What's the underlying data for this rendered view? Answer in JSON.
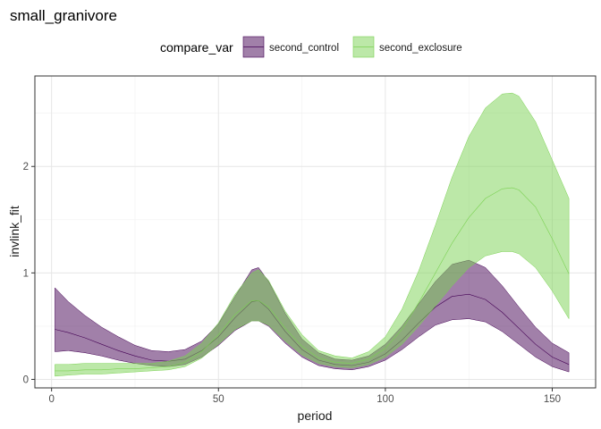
{
  "chart_data": {
    "type": "area",
    "title": "small_granivore",
    "xlabel": "period",
    "ylabel": "invlink_fit",
    "xlim": [
      -5,
      163
    ],
    "ylim": [
      -0.08,
      2.85
    ],
    "x_ticks": [
      0,
      50,
      100,
      150
    ],
    "y_ticks": [
      0,
      1,
      2
    ],
    "grid": true,
    "legend": {
      "title": "compare_var",
      "position": "top"
    },
    "series": [
      {
        "name": "second_control",
        "fill": "#440154",
        "line": "#440154",
        "x": [
          1,
          5,
          10,
          15,
          20,
          25,
          30,
          35,
          40,
          45,
          50,
          55,
          60,
          62,
          65,
          70,
          75,
          80,
          85,
          90,
          95,
          100,
          105,
          110,
          115,
          120,
          125,
          130,
          135,
          140,
          145,
          150,
          155
        ],
        "fit": [
          0.47,
          0.44,
          0.39,
          0.33,
          0.27,
          0.22,
          0.18,
          0.17,
          0.19,
          0.27,
          0.4,
          0.58,
          0.73,
          0.74,
          0.66,
          0.45,
          0.28,
          0.18,
          0.14,
          0.13,
          0.16,
          0.24,
          0.37,
          0.53,
          0.68,
          0.78,
          0.8,
          0.75,
          0.63,
          0.48,
          0.33,
          0.21,
          0.14
        ],
        "lower": [
          0.26,
          0.27,
          0.25,
          0.22,
          0.18,
          0.15,
          0.13,
          0.12,
          0.14,
          0.21,
          0.32,
          0.46,
          0.55,
          0.55,
          0.5,
          0.34,
          0.21,
          0.13,
          0.1,
          0.09,
          0.12,
          0.18,
          0.28,
          0.4,
          0.51,
          0.56,
          0.57,
          0.54,
          0.45,
          0.33,
          0.21,
          0.12,
          0.07
        ],
        "upper": [
          0.86,
          0.73,
          0.6,
          0.49,
          0.4,
          0.32,
          0.27,
          0.26,
          0.28,
          0.36,
          0.52,
          0.78,
          1.03,
          1.05,
          0.92,
          0.62,
          0.38,
          0.25,
          0.19,
          0.18,
          0.22,
          0.33,
          0.5,
          0.71,
          0.92,
          1.08,
          1.12,
          1.05,
          0.88,
          0.68,
          0.49,
          0.34,
          0.25
        ]
      },
      {
        "name": "second_exclosure",
        "fill": "#7AD151",
        "line": "#7AD151",
        "x": [
          1,
          5,
          10,
          15,
          20,
          25,
          30,
          35,
          40,
          45,
          50,
          55,
          60,
          62,
          65,
          70,
          75,
          80,
          85,
          90,
          95,
          100,
          105,
          110,
          115,
          120,
          125,
          130,
          135,
          138,
          140,
          145,
          150,
          155
        ],
        "fit": [
          0.08,
          0.08,
          0.09,
          0.09,
          0.1,
          0.1,
          0.11,
          0.12,
          0.16,
          0.26,
          0.42,
          0.61,
          0.74,
          0.74,
          0.68,
          0.48,
          0.31,
          0.2,
          0.16,
          0.15,
          0.19,
          0.29,
          0.47,
          0.72,
          1.0,
          1.28,
          1.52,
          1.7,
          1.79,
          1.8,
          1.78,
          1.62,
          1.32,
          0.99
        ],
        "lower": [
          0.03,
          0.04,
          0.05,
          0.05,
          0.06,
          0.07,
          0.08,
          0.09,
          0.12,
          0.2,
          0.33,
          0.47,
          0.55,
          0.55,
          0.51,
          0.36,
          0.23,
          0.15,
          0.12,
          0.11,
          0.14,
          0.21,
          0.33,
          0.5,
          0.69,
          0.88,
          1.05,
          1.16,
          1.2,
          1.2,
          1.18,
          1.05,
          0.83,
          0.57
        ],
        "upper": [
          0.14,
          0.14,
          0.15,
          0.15,
          0.15,
          0.15,
          0.15,
          0.17,
          0.22,
          0.34,
          0.53,
          0.8,
          1.0,
          1.03,
          0.93,
          0.64,
          0.42,
          0.27,
          0.22,
          0.2,
          0.26,
          0.4,
          0.66,
          1.02,
          1.45,
          1.9,
          2.28,
          2.55,
          2.68,
          2.69,
          2.66,
          2.42,
          2.06,
          1.7
        ]
      }
    ]
  }
}
